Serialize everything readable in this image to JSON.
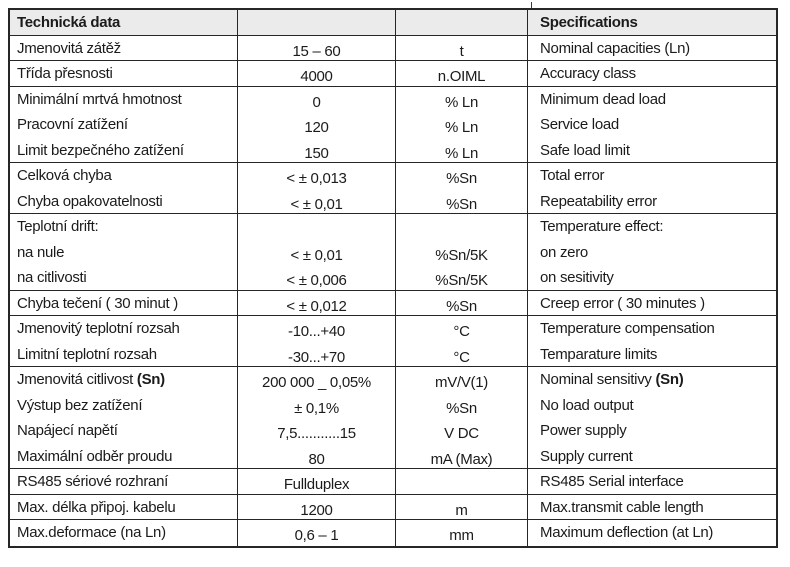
{
  "table": {
    "header": {
      "cz": "Technická data",
      "en": "Specifications"
    },
    "rows": [
      {
        "c": "Jmenovitá zátěž",
        "v": "15 – 60",
        "u": "t",
        "e": "Nominal capacities (Ln)"
      },
      {
        "c": "Třída přesnosti",
        "v": "4000",
        "u": "n.OIML",
        "e": "Accuracy class"
      },
      {
        "c": "Minimální mrtvá hmotnost",
        "v": "0",
        "u": "% Ln",
        "e": "Minimum dead load"
      },
      {
        "c": "Pracovní zatížení",
        "v": "120",
        "u": "% Ln",
        "e": "Service load"
      },
      {
        "c": "Limit bezpečného zatížení",
        "v": "150",
        "u": "% Ln",
        "e": "Safe load limit"
      },
      {
        "c": "Celková chyba",
        "v": "< ± 0,013",
        "u": "%Sn",
        "e": "Total error"
      },
      {
        "c": "Chyba opakovatelnosti",
        "v": "< ± 0,01",
        "u": "%Sn",
        "e": "Repeatability error"
      },
      {
        "c": "Teplotní drift:",
        "v": "",
        "u": "",
        "e": "Temperature effect:"
      },
      {
        "c": "na nule",
        "v": "< ± 0,01",
        "u": "%Sn/5K",
        "e": "on zero"
      },
      {
        "c": "na citlivosti",
        "v": "< ± 0,006",
        "u": "%Sn/5K",
        "e": "on sesitivity"
      },
      {
        "c": "Chyba tečení ( 30 minut )",
        "v": "< ± 0,012",
        "u": "%Sn",
        "e": "Creep error ( 30 minutes )"
      },
      {
        "c": "Jmenovitý teplotní rozsah",
        "v": "-10...+40",
        "u": "°C",
        "e": "Temperature compensation"
      },
      {
        "c": "Limitní teplotní rozsah",
        "v": "-30...+70",
        "u": "°C",
        "e": "Temparature limits"
      },
      {
        "c": "Jmenovitá citlivost ",
        "cb": "(Sn)",
        "v": "200 000 _ 0,05%",
        "u": "mV/V(1)",
        "e": "Nominal sensitivy ",
        "eb": "(Sn)"
      },
      {
        "c": "Výstup bez zatížení",
        "v": "± 0,1%",
        "u": "%Sn",
        "e": "No load output"
      },
      {
        "c": "Napájecí napětí",
        "v": "7,5...........15",
        "u": "V DC",
        "e": "Power supply"
      },
      {
        "c": "Maximální odběr proudu",
        "v": "80",
        "u": "mA (Max)",
        "e": "Supply current"
      },
      {
        "c": "RS485 sériové rozhraní",
        "v": "Fullduplex",
        "u": "",
        "e": "RS485 Serial interface"
      },
      {
        "c": "Max. délka připoj. kabelu",
        "v": "1200",
        "u": "m",
        "e": "Max.transmit cable length"
      },
      {
        "c": "Max.deformace (na Ln)",
        "v": "0,6 – 1",
        "u": "mm",
        "e": "Maximum deflection (at Ln)"
      }
    ]
  }
}
